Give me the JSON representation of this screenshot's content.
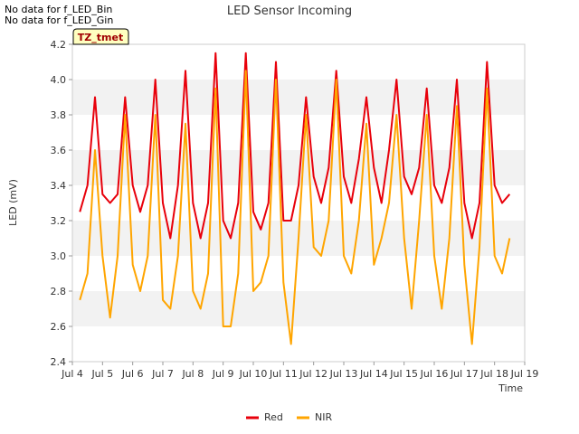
{
  "notes": [
    "No data for f_LED_Bin",
    "No data for f_LED_Gin"
  ],
  "badge": "TZ_tmet",
  "chart_data": {
    "type": "line",
    "title": "LED Sensor Incoming",
    "xlabel": "Time",
    "ylabel": "LED (mV)",
    "xlim": [
      "2024-07-04",
      "2024-07-19"
    ],
    "x_ticks": [
      "Jul 4",
      "Jul 5",
      "Jul 6",
      "Jul 7",
      "Jul 8",
      "Jul 9",
      "Jul 10",
      "Jul 11",
      "Jul 12",
      "Jul 13",
      "Jul 14",
      "Jul 15",
      "Jul 16",
      "Jul 17",
      "Jul 18",
      "Jul 19"
    ],
    "ylim": [
      2.4,
      4.2
    ],
    "y_ticks": [
      2.4,
      2.6,
      2.8,
      3.0,
      3.2,
      3.4,
      3.6,
      3.8,
      4.0,
      4.2
    ],
    "grid": "horizontal bands",
    "legend_position": "bottom",
    "series": [
      {
        "name": "Red",
        "color": "#e8000b",
        "x": [
          "2024-07-04 06:00",
          "2024-07-04 12:00",
          "2024-07-04 18:00",
          "2024-07-05 00:00",
          "2024-07-05 06:00",
          "2024-07-05 12:00",
          "2024-07-05 18:00",
          "2024-07-06 00:00",
          "2024-07-06 06:00",
          "2024-07-06 12:00",
          "2024-07-06 18:00",
          "2024-07-07 00:00",
          "2024-07-07 06:00",
          "2024-07-07 12:00",
          "2024-07-07 18:00",
          "2024-07-08 00:00",
          "2024-07-08 06:00",
          "2024-07-08 12:00",
          "2024-07-08 18:00",
          "2024-07-09 00:00",
          "2024-07-09 06:00",
          "2024-07-09 12:00",
          "2024-07-09 18:00",
          "2024-07-10 00:00",
          "2024-07-10 06:00",
          "2024-07-10 12:00",
          "2024-07-10 18:00",
          "2024-07-11 00:00",
          "2024-07-11 06:00",
          "2024-07-11 12:00",
          "2024-07-11 18:00",
          "2024-07-12 00:00",
          "2024-07-12 06:00",
          "2024-07-12 12:00",
          "2024-07-12 18:00",
          "2024-07-13 00:00",
          "2024-07-13 06:00",
          "2024-07-13 12:00",
          "2024-07-13 18:00",
          "2024-07-14 00:00",
          "2024-07-14 06:00",
          "2024-07-14 12:00",
          "2024-07-14 18:00",
          "2024-07-15 00:00",
          "2024-07-15 06:00",
          "2024-07-15 12:00",
          "2024-07-15 18:00",
          "2024-07-16 00:00",
          "2024-07-16 06:00",
          "2024-07-16 12:00",
          "2024-07-16 18:00",
          "2024-07-17 00:00",
          "2024-07-17 06:00",
          "2024-07-17 12:00",
          "2024-07-17 18:00",
          "2024-07-18 00:00",
          "2024-07-18 06:00",
          "2024-07-18 12:00"
        ],
        "values": [
          3.25,
          3.4,
          3.9,
          3.35,
          3.3,
          3.35,
          3.9,
          3.4,
          3.25,
          3.4,
          4.0,
          3.3,
          3.1,
          3.4,
          4.05,
          3.3,
          3.1,
          3.3,
          4.15,
          3.2,
          3.1,
          3.3,
          4.15,
          3.25,
          3.15,
          3.3,
          4.1,
          3.2,
          3.2,
          3.4,
          3.9,
          3.45,
          3.3,
          3.5,
          4.05,
          3.45,
          3.3,
          3.55,
          3.9,
          3.5,
          3.3,
          3.6,
          4.0,
          3.45,
          3.35,
          3.5,
          3.95,
          3.4,
          3.3,
          3.5,
          4.0,
          3.3,
          3.1,
          3.3,
          4.1,
          3.4,
          3.3,
          3.35
        ]
      },
      {
        "name": "NIR",
        "color": "#ffa500",
        "x": [
          "2024-07-04 06:00",
          "2024-07-04 12:00",
          "2024-07-04 18:00",
          "2024-07-05 00:00",
          "2024-07-05 06:00",
          "2024-07-05 12:00",
          "2024-07-05 18:00",
          "2024-07-06 00:00",
          "2024-07-06 06:00",
          "2024-07-06 12:00",
          "2024-07-06 18:00",
          "2024-07-07 00:00",
          "2024-07-07 06:00",
          "2024-07-07 12:00",
          "2024-07-07 18:00",
          "2024-07-08 00:00",
          "2024-07-08 06:00",
          "2024-07-08 12:00",
          "2024-07-08 18:00",
          "2024-07-09 00:00",
          "2024-07-09 06:00",
          "2024-07-09 12:00",
          "2024-07-09 18:00",
          "2024-07-10 00:00",
          "2024-07-10 06:00",
          "2024-07-10 12:00",
          "2024-07-10 18:00",
          "2024-07-11 00:00",
          "2024-07-11 06:00",
          "2024-07-11 12:00",
          "2024-07-11 18:00",
          "2024-07-12 00:00",
          "2024-07-12 06:00",
          "2024-07-12 12:00",
          "2024-07-12 18:00",
          "2024-07-13 00:00",
          "2024-07-13 06:00",
          "2024-07-13 12:00",
          "2024-07-13 18:00",
          "2024-07-14 00:00",
          "2024-07-14 06:00",
          "2024-07-14 12:00",
          "2024-07-14 18:00",
          "2024-07-15 00:00",
          "2024-07-15 06:00",
          "2024-07-15 12:00",
          "2024-07-15 18:00",
          "2024-07-16 00:00",
          "2024-07-16 06:00",
          "2024-07-16 12:00",
          "2024-07-16 18:00",
          "2024-07-17 00:00",
          "2024-07-17 06:00",
          "2024-07-17 12:00",
          "2024-07-17 18:00",
          "2024-07-18 00:00",
          "2024-07-18 06:00",
          "2024-07-18 12:00"
        ],
        "values": [
          2.75,
          2.9,
          3.6,
          3.0,
          2.65,
          3.0,
          3.8,
          2.95,
          2.8,
          3.0,
          3.8,
          2.75,
          2.7,
          3.0,
          3.75,
          2.8,
          2.7,
          2.9,
          3.95,
          2.6,
          2.6,
          2.9,
          4.05,
          2.8,
          2.85,
          3.0,
          4.0,
          2.85,
          2.5,
          3.1,
          3.8,
          3.05,
          3.0,
          3.2,
          4.0,
          3.0,
          2.9,
          3.2,
          3.75,
          2.95,
          3.1,
          3.3,
          3.8,
          3.1,
          2.7,
          3.2,
          3.8,
          3.0,
          2.7,
          3.1,
          3.85,
          2.95,
          2.5,
          3.05,
          3.95,
          3.0,
          2.9,
          3.1
        ]
      }
    ]
  }
}
